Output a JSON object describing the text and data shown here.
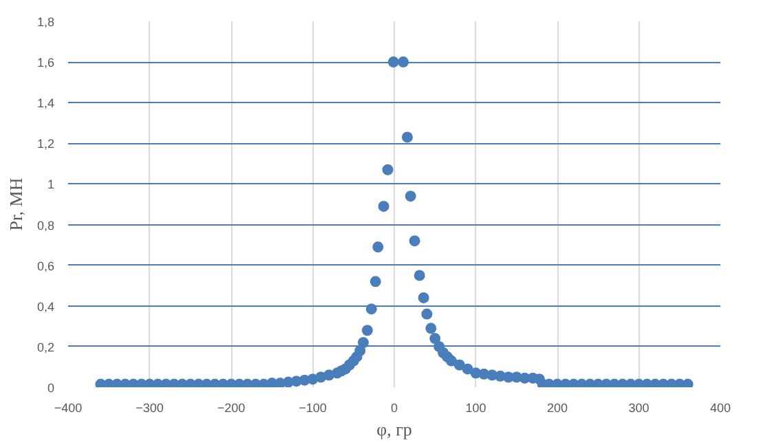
{
  "chart_data": {
    "type": "scatter",
    "xlabel": "φ, гр",
    "ylabel": "Pr, МН",
    "xlim": [
      -400,
      400
    ],
    "xticks": [
      -400,
      -300,
      -200,
      -100,
      0,
      100,
      200,
      300,
      400
    ],
    "ylim": [
      0,
      1.8
    ],
    "yticks": [
      0,
      {
        "value": 0.2,
        "label": "0,2"
      },
      {
        "value": 0.4,
        "label": "0,4"
      },
      {
        "value": 0.6,
        "label": "0,6"
      },
      {
        "value": 0.8,
        "label": "0,8"
      },
      1,
      {
        "value": 1.2,
        "label": "1,2"
      },
      {
        "value": 1.4,
        "label": "1,4"
      },
      {
        "value": 1.6,
        "label": "1,6"
      },
      {
        "value": 1.8,
        "label": "1,8"
      }
    ],
    "grid": true,
    "marker": "circle",
    "series": [
      {
        "color": "#4a7ebb",
        "x": [
          -360,
          -350,
          -340,
          -330,
          -320,
          -310,
          -300,
          -290,
          -280,
          -270,
          -260,
          -250,
          -240,
          -230,
          -220,
          -210,
          -200,
          -190,
          -180,
          -170,
          -160,
          -150,
          -140,
          -130,
          -120,
          -110,
          -100,
          -90,
          -80,
          -70,
          -65,
          -60,
          -55,
          -50,
          -46,
          -42,
          -38,
          -33,
          -28,
          -23,
          -20,
          -13,
          -8,
          -1,
          11,
          16,
          20,
          25,
          31,
          36,
          40,
          45,
          50,
          55,
          60,
          65,
          70,
          80,
          90,
          100,
          110,
          120,
          130,
          140,
          150,
          160,
          170,
          178,
          182,
          190,
          200,
          210,
          220,
          230,
          240,
          250,
          260,
          270,
          280,
          290,
          300,
          310,
          320,
          330,
          340,
          350,
          360
        ],
        "values": [
          0.015,
          0.015,
          0.015,
          0.015,
          0.015,
          0.015,
          0.015,
          0.015,
          0.015,
          0.015,
          0.015,
          0.015,
          0.015,
          0.015,
          0.015,
          0.015,
          0.015,
          0.015,
          0.015,
          0.015,
          0.015,
          0.02,
          0.02,
          0.025,
          0.03,
          0.035,
          0.04,
          0.05,
          0.06,
          0.07,
          0.08,
          0.09,
          0.11,
          0.13,
          0.15,
          0.18,
          0.22,
          0.28,
          0.385,
          0.52,
          0.69,
          0.89,
          1.07,
          1.6,
          1.6,
          1.23,
          0.94,
          0.72,
          0.55,
          0.44,
          0.36,
          0.29,
          0.24,
          0.2,
          0.17,
          0.15,
          0.13,
          0.11,
          0.09,
          0.07,
          0.065,
          0.06,
          0.055,
          0.05,
          0.05,
          0.045,
          0.045,
          0.04,
          0.015,
          0.015,
          0.015,
          0.015,
          0.015,
          0.015,
          0.015,
          0.015,
          0.015,
          0.015,
          0.015,
          0.015,
          0.015,
          0.015,
          0.015,
          0.015,
          0.015,
          0.015,
          0.015
        ]
      }
    ]
  }
}
